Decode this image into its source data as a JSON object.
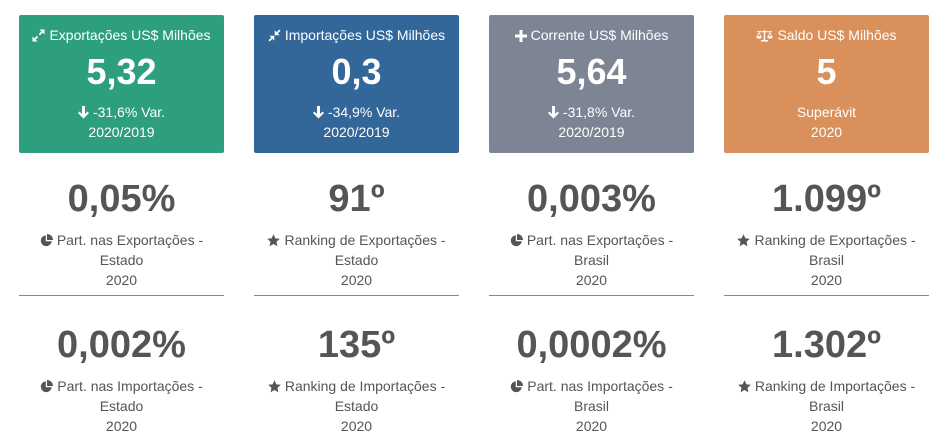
{
  "colors": {
    "exportacoes": "#2e9f7e",
    "importacoes": "#336699",
    "corrente": "#7d8595",
    "saldo": "#d9905a",
    "stat_text": "#555555"
  },
  "cards": [
    {
      "icon": "expand-arrows-icon",
      "title": "Exportações US$ Milhões",
      "value": "5,32",
      "line1_icon": "arrow-down-icon",
      "line1": "-31,6% Var.",
      "line2": "2020/2019"
    },
    {
      "icon": "compress-arrows-icon",
      "title": "Importações US$ Milhões",
      "value": "0,3",
      "line1_icon": "arrow-down-icon",
      "line1": "-34,9% Var.",
      "line2": "2020/2019"
    },
    {
      "icon": "plus-icon",
      "title": "Corrente US$ Milhões",
      "value": "5,64",
      "line1_icon": "arrow-down-icon",
      "line1": "-31,8% Var.",
      "line2": "2020/2019"
    },
    {
      "icon": "balance-scale-icon",
      "title": "Saldo US$ Milhões",
      "value": "5",
      "line1": "Superávit",
      "line2": "2020"
    }
  ],
  "stats_row1": [
    {
      "icon": "pie-chart-icon",
      "value": "0,05%",
      "label1": "Part. nas Exportações -",
      "label2": "Estado",
      "label3": "2020"
    },
    {
      "icon": "star-icon",
      "value": "91º",
      "label1": "Ranking de Exportações -",
      "label2": "Estado",
      "label3": "2020"
    },
    {
      "icon": "pie-chart-icon",
      "value": "0,003%",
      "label1": "Part. nas Exportações -",
      "label2": "Brasil",
      "label3": "2020"
    },
    {
      "icon": "star-icon",
      "value": "1.099º",
      "label1": "Ranking de Exportações -",
      "label2": "Brasil",
      "label3": "2020"
    }
  ],
  "stats_row2": [
    {
      "icon": "pie-chart-icon",
      "value": "0,002%",
      "label1": "Part. nas Importações -",
      "label2": "Estado",
      "label3": "2020"
    },
    {
      "icon": "star-icon",
      "value": "135º",
      "label1": "Ranking de Importações -",
      "label2": "Estado",
      "label3": "2020"
    },
    {
      "icon": "pie-chart-icon",
      "value": "0,0002%",
      "label1": "Part. nas Importações -",
      "label2": "Brasil",
      "label3": "2020"
    },
    {
      "icon": "star-icon",
      "value": "1.302º",
      "label1": "Ranking de Importações -",
      "label2": "Brasil",
      "label3": "2020"
    }
  ]
}
